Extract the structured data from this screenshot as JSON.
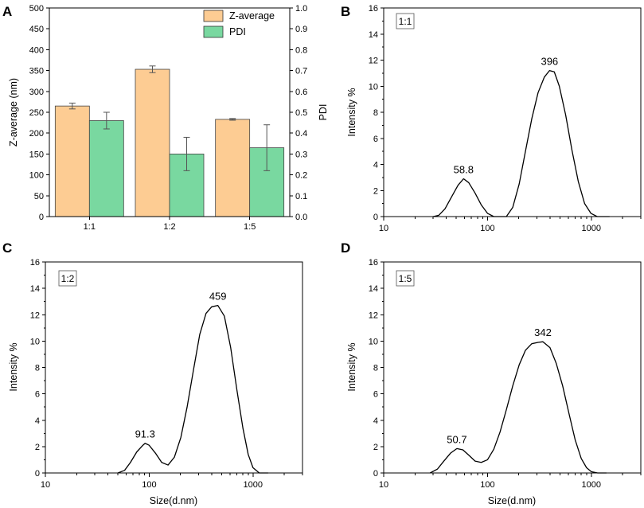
{
  "colors": {
    "z_average": "#fdcc93",
    "pdi": "#79d8a0"
  },
  "chart_data": [
    {
      "id": "A",
      "panel_label": "A",
      "type": "bar",
      "categories": [
        "1:1",
        "1:2",
        "1:5"
      ],
      "series": [
        {
          "name": "Z-average",
          "axis": "left",
          "values": [
            265,
            353,
            233
          ],
          "errors": [
            7,
            8,
            2
          ]
        },
        {
          "name": "PDI",
          "axis": "right",
          "values": [
            0.46,
            0.3,
            0.33
          ],
          "errors": [
            0.04,
            0.08,
            0.11
          ]
        }
      ],
      "ylabel": "Z-average (nm)",
      "ylabel_right": "PDI",
      "ylim": [
        0,
        500
      ],
      "ylim_right": [
        0,
        1.0
      ],
      "yticks": [
        "0",
        "50",
        "100",
        "150",
        "200",
        "250",
        "300",
        "350",
        "400",
        "450",
        "500"
      ],
      "yticks_right": [
        "0.0",
        "0.1",
        "0.2",
        "0.3",
        "0.4",
        "0.5",
        "0.6",
        "0.7",
        "0.8",
        "0.9",
        "1.0"
      ],
      "legend": [
        "Z-average",
        "PDI"
      ],
      "legend_position": "top-right"
    },
    {
      "id": "B",
      "panel_label": "B",
      "type": "line",
      "ratio_label": "1:1",
      "xscale": "log",
      "xlim": [
        10,
        3000
      ],
      "xticks": [
        "10",
        "100",
        "1000"
      ],
      "ylim": [
        0,
        16
      ],
      "yticks": [
        "0",
        "2",
        "4",
        "6",
        "8",
        "10",
        "12",
        "14",
        "16"
      ],
      "ylabel": "Intensity %",
      "xlabel": "",
      "points": [
        [
          30,
          0
        ],
        [
          34,
          0.1
        ],
        [
          39,
          0.6
        ],
        [
          45,
          1.5
        ],
        [
          52,
          2.4
        ],
        [
          58.8,
          2.9
        ],
        [
          66,
          2.6
        ],
        [
          76,
          1.8
        ],
        [
          87,
          0.9
        ],
        [
          100,
          0.25
        ],
        [
          115,
          0
        ],
        [
          132,
          0
        ],
        [
          152,
          0
        ],
        [
          175,
          0.7
        ],
        [
          202,
          2.5
        ],
        [
          232,
          5.0
        ],
        [
          267,
          7.5
        ],
        [
          307,
          9.5
        ],
        [
          353,
          10.7
        ],
        [
          396,
          11.2
        ],
        [
          440,
          11.1
        ],
        [
          492,
          10.0
        ],
        [
          566,
          7.8
        ],
        [
          651,
          5.1
        ],
        [
          749,
          2.7
        ],
        [
          862,
          1.0
        ],
        [
          991,
          0.25
        ],
        [
          1140,
          0
        ],
        [
          1310,
          0
        ],
        [
          1500,
          0
        ]
      ],
      "peaks": [
        {
          "x": 58.8,
          "y": 2.9,
          "label": "58.8"
        },
        {
          "x": 396,
          "y": 11.2,
          "label": "396"
        }
      ]
    },
    {
      "id": "C",
      "panel_label": "C",
      "type": "line",
      "ratio_label": "1:2",
      "xscale": "log",
      "xlim": [
        10,
        3000
      ],
      "xticks": [
        "10",
        "100",
        "1000"
      ],
      "ylim": [
        0,
        16
      ],
      "yticks": [
        "0",
        "2",
        "4",
        "6",
        "8",
        "10",
        "12",
        "14",
        "16"
      ],
      "ylabel": "Intensity %",
      "xlabel": "Size(d.nm)",
      "points": [
        [
          50,
          0
        ],
        [
          58,
          0.2
        ],
        [
          66,
          0.8
        ],
        [
          76,
          1.6
        ],
        [
          87,
          2.1
        ],
        [
          91.3,
          2.25
        ],
        [
          100,
          2.1
        ],
        [
          115,
          1.5
        ],
        [
          132,
          0.8
        ],
        [
          152,
          0.6
        ],
        [
          175,
          1.2
        ],
        [
          202,
          2.7
        ],
        [
          232,
          5.0
        ],
        [
          267,
          7.8
        ],
        [
          307,
          10.5
        ],
        [
          353,
          12.1
        ],
        [
          400,
          12.6
        ],
        [
          459,
          12.7
        ],
        [
          530,
          11.9
        ],
        [
          610,
          9.5
        ],
        [
          700,
          6.3
        ],
        [
          800,
          3.4
        ],
        [
          900,
          1.4
        ],
        [
          1000,
          0.4
        ],
        [
          1150,
          0
        ],
        [
          1400,
          0
        ]
      ],
      "peaks": [
        {
          "x": 91.3,
          "y": 2.25,
          "label": "91.3"
        },
        {
          "x": 459,
          "y": 12.7,
          "label": "459"
        }
      ]
    },
    {
      "id": "D",
      "panel_label": "D",
      "type": "line",
      "ratio_label": "1:5",
      "xscale": "log",
      "xlim": [
        10,
        3000
      ],
      "xticks": [
        "10",
        "100",
        "1000"
      ],
      "ylim": [
        0,
        16
      ],
      "yticks": [
        "0",
        "2",
        "4",
        "6",
        "8",
        "10",
        "12",
        "14",
        "16"
      ],
      "ylabel": "Intensity %",
      "xlabel": "Size(d.nm)",
      "points": [
        [
          28,
          0
        ],
        [
          33,
          0.3
        ],
        [
          38,
          0.9
        ],
        [
          44,
          1.5
        ],
        [
          50.7,
          1.85
        ],
        [
          58,
          1.75
        ],
        [
          66,
          1.35
        ],
        [
          76,
          0.9
        ],
        [
          87,
          0.8
        ],
        [
          100,
          1.0
        ],
        [
          115,
          1.8
        ],
        [
          132,
          3.1
        ],
        [
          152,
          4.8
        ],
        [
          175,
          6.6
        ],
        [
          202,
          8.2
        ],
        [
          232,
          9.3
        ],
        [
          267,
          9.8
        ],
        [
          307,
          9.9
        ],
        [
          342,
          9.95
        ],
        [
          400,
          9.5
        ],
        [
          460,
          8.3
        ],
        [
          530,
          6.6
        ],
        [
          610,
          4.5
        ],
        [
          700,
          2.5
        ],
        [
          800,
          1.1
        ],
        [
          900,
          0.4
        ],
        [
          1000,
          0.1
        ],
        [
          1150,
          0
        ],
        [
          1400,
          0
        ]
      ],
      "peaks": [
        {
          "x": 50.7,
          "y": 1.85,
          "label": "50.7"
        },
        {
          "x": 342,
          "y": 9.95,
          "label": "342"
        }
      ]
    }
  ]
}
